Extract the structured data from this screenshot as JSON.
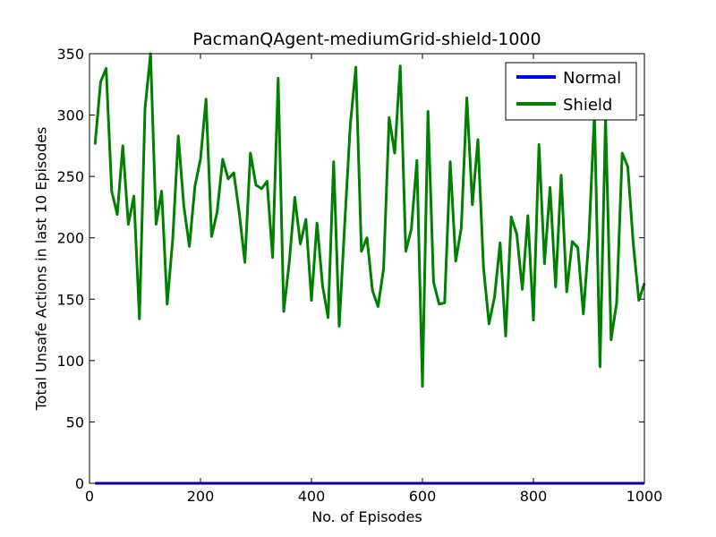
{
  "chart_data": {
    "type": "line",
    "title": "PacmanQAgent-mediumGrid-shield-1000",
    "xlabel": "No. of Episodes",
    "ylabel": "Total Unsafe Actions in last 10 Episodes",
    "xlim": [
      0,
      1000
    ],
    "ylim": [
      0,
      350
    ],
    "xticks": [
      0,
      200,
      400,
      600,
      800,
      1000
    ],
    "yticks": [
      0,
      50,
      100,
      150,
      200,
      250,
      300,
      350
    ],
    "grid": false,
    "legend_position": "top-right",
    "x": [
      10,
      20,
      30,
      40,
      50,
      60,
      70,
      80,
      90,
      100,
      110,
      120,
      130,
      140,
      150,
      160,
      170,
      180,
      190,
      200,
      210,
      220,
      230,
      240,
      250,
      260,
      270,
      280,
      290,
      300,
      310,
      320,
      330,
      340,
      350,
      360,
      370,
      380,
      390,
      400,
      410,
      420,
      430,
      440,
      450,
      460,
      470,
      480,
      490,
      500,
      510,
      520,
      530,
      540,
      550,
      560,
      570,
      580,
      590,
      600,
      610,
      620,
      630,
      640,
      650,
      660,
      670,
      680,
      690,
      700,
      710,
      720,
      730,
      740,
      750,
      760,
      770,
      780,
      790,
      800,
      810,
      820,
      830,
      840,
      850,
      860,
      870,
      880,
      890,
      900,
      910,
      920,
      930,
      940,
      950,
      960,
      970,
      980,
      990,
      1000
    ],
    "series": [
      {
        "name": "Normal",
        "color": "#0000ff",
        "values": [
          0,
          0,
          0,
          0,
          0,
          0,
          0,
          0,
          0,
          0,
          0,
          0,
          0,
          0,
          0,
          0,
          0,
          0,
          0,
          0,
          0,
          0,
          0,
          0,
          0,
          0,
          0,
          0,
          0,
          0,
          0,
          0,
          0,
          0,
          0,
          0,
          0,
          0,
          0,
          0,
          0,
          0,
          0,
          0,
          0,
          0,
          0,
          0,
          0,
          0,
          0,
          0,
          0,
          0,
          0,
          0,
          0,
          0,
          0,
          0,
          0,
          0,
          0,
          0,
          0,
          0,
          0,
          0,
          0,
          0,
          0,
          0,
          0,
          0,
          0,
          0,
          0,
          0,
          0,
          0,
          0,
          0,
          0,
          0,
          0,
          0,
          0,
          0,
          0,
          0,
          0,
          0,
          0,
          0,
          0,
          0,
          0,
          0,
          0,
          0
        ]
      },
      {
        "name": "Shield",
        "color": "#008000",
        "values": [
          276,
          327,
          338,
          238,
          219,
          275,
          211,
          234,
          134,
          305,
          350,
          211,
          238,
          146,
          199,
          283,
          226,
          193,
          242,
          264,
          313,
          201,
          221,
          264,
          248,
          253,
          220,
          180,
          269,
          243,
          240,
          246,
          184,
          330,
          140,
          180,
          233,
          195,
          215,
          149,
          212,
          161,
          135,
          262,
          128,
          212,
          292,
          339,
          189,
          200,
          157,
          144,
          175,
          298,
          269,
          340,
          189,
          207,
          263,
          79,
          303,
          164,
          146,
          147,
          262,
          181,
          208,
          314,
          227,
          280,
          176,
          130,
          152,
          196,
          120,
          217,
          203,
          158,
          218,
          133,
          276,
          179,
          241,
          160,
          251,
          156,
          197,
          192,
          138,
          200,
          302,
          95,
          298,
          117,
          147,
          269,
          258,
          195,
          149,
          163
        ]
      }
    ]
  }
}
